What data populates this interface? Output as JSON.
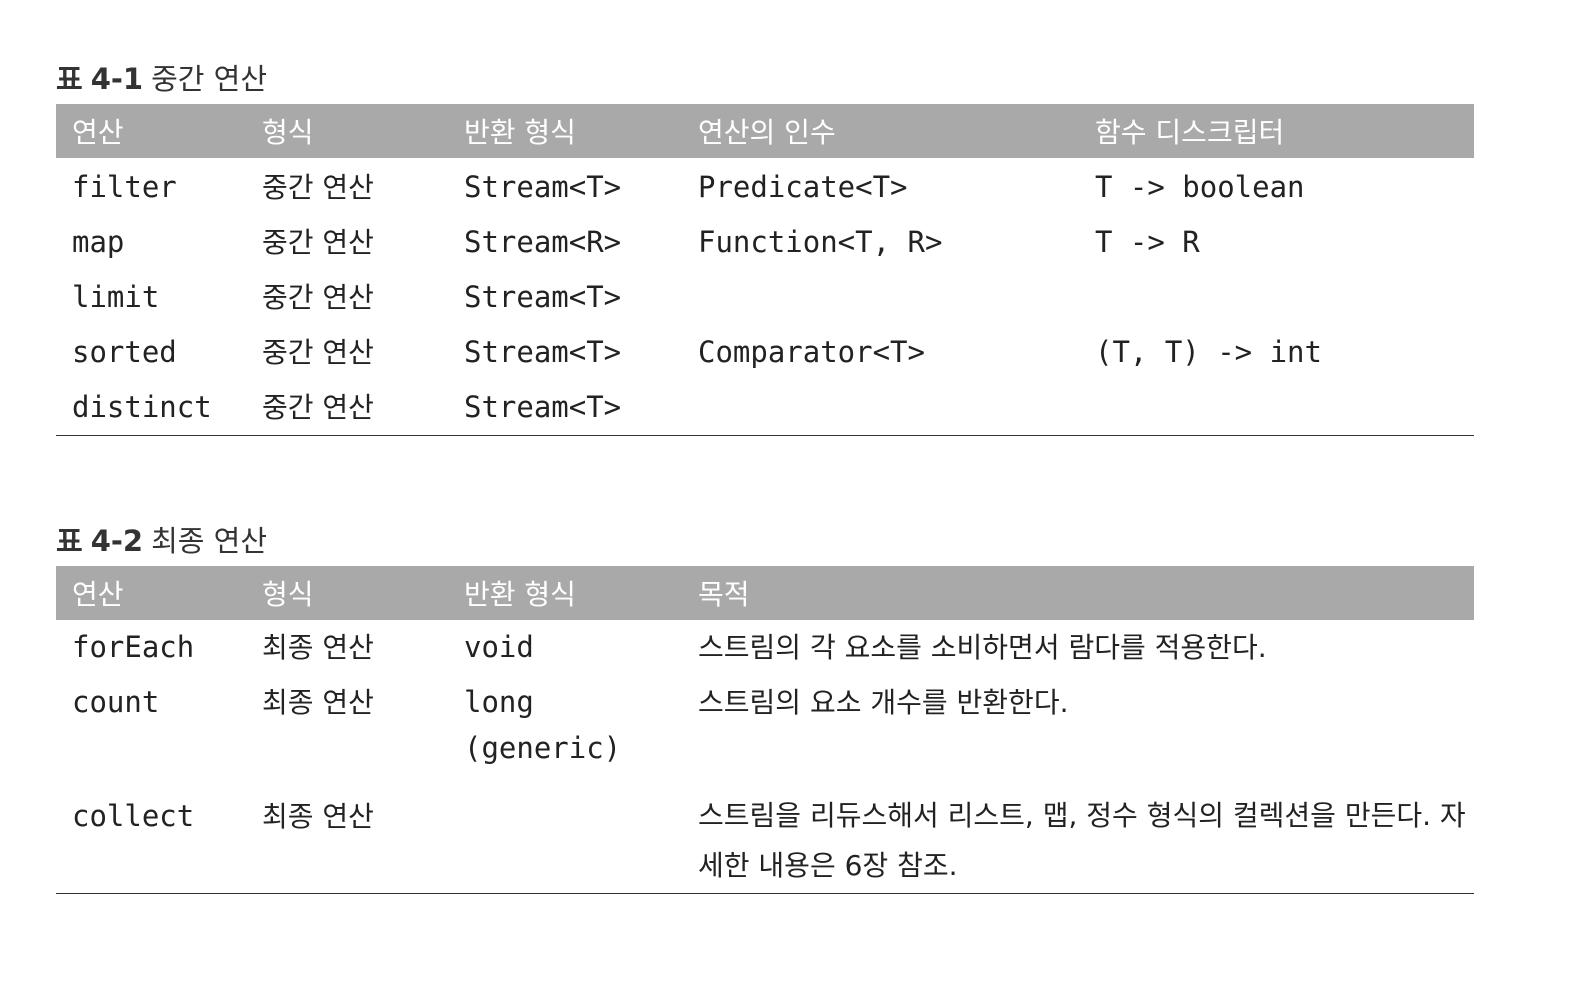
{
  "table1": {
    "caption_label": "표",
    "caption_number": "4-1",
    "caption_title": "중간 연산",
    "headers": [
      "연산",
      "형식",
      "반환 형식",
      "연산의 인수",
      "함수 디스크립터"
    ],
    "rows": [
      [
        "filter",
        "중간 연산",
        "Stream<T>",
        "Predicate<T>",
        "T -> boolean"
      ],
      [
        "map",
        "중간 연산",
        "Stream<R>",
        "Function<T, R>",
        "T -> R"
      ],
      [
        "limit",
        "중간 연산",
        "Stream<T>",
        "",
        ""
      ],
      [
        "sorted",
        "중간 연산",
        "Stream<T>",
        "Comparator<T>",
        "(T, T) -> int"
      ],
      [
        "distinct",
        "중간 연산",
        "Stream<T>",
        "",
        ""
      ]
    ]
  },
  "table2": {
    "caption_label": "표",
    "caption_number": "4-2",
    "caption_title": "최종 연산",
    "headers": [
      "연산",
      "형식",
      "반환 형식",
      "목적"
    ],
    "rows": [
      [
        "forEach",
        "최종 연산",
        "void",
        "스트림의 각 요소를 소비하면서 람다를 적용한다."
      ],
      [
        "count",
        "최종 연산",
        "long",
        "스트림의 요소 개수를 반환한다."
      ],
      [
        "collect",
        "최종 연산",
        "",
        "스트림을 리듀스해서 리스트, 맵, 정수 형식의 컬렉션을 만든다. 자세한 내용은 6장 참조."
      ]
    ],
    "count_return_note": "(generic)"
  }
}
